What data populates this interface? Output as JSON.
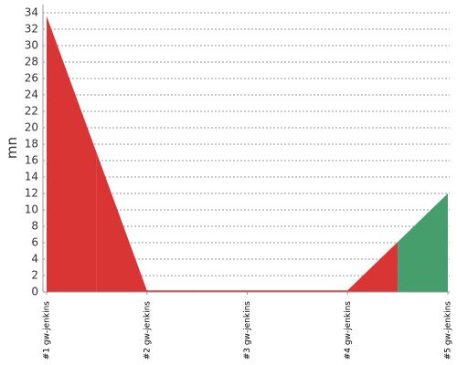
{
  "chart_data": {
    "type": "area",
    "y_label": "mn",
    "categories": [
      "#1 gw-jenkins",
      "#2 gw-jenkins",
      "#3 gw-jenkins",
      "#4 gw-jenkins",
      "#5 gw-jenkins"
    ],
    "values": [
      33.6,
      0.2,
      0.2,
      0.2,
      12
    ],
    "point_colors": [
      "#d93535",
      "#d93535",
      "#d93535",
      "#d93535",
      "#459e6b"
    ],
    "ylim": [
      0,
      35
    ],
    "yticks": [
      0,
      2,
      4,
      6,
      8,
      10,
      12,
      14,
      16,
      18,
      20,
      22,
      24,
      26,
      28,
      30,
      32,
      34
    ],
    "grid": true
  }
}
